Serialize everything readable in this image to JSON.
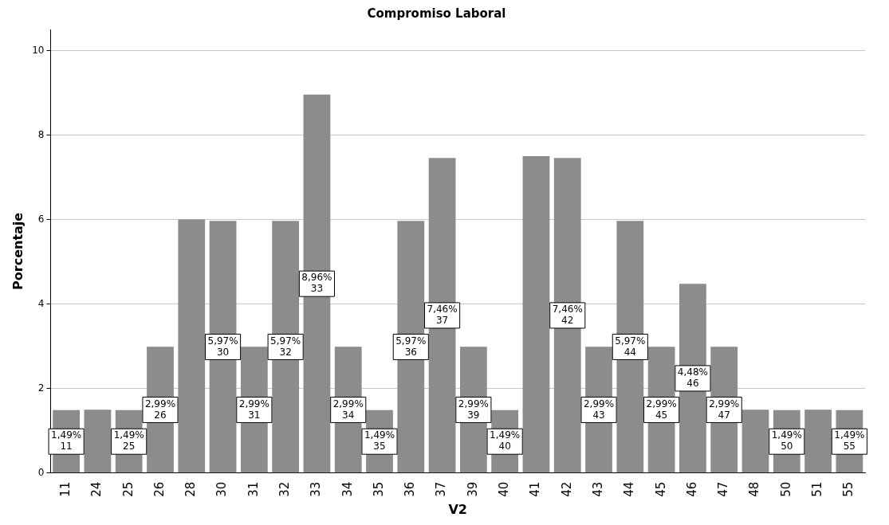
{
  "chart_data": {
    "type": "bar",
    "title": "Compromiso Laboral",
    "xlabel": "V2",
    "ylabel": "Porcentaje",
    "categories": [
      "11",
      "24",
      "25",
      "26",
      "28",
      "30",
      "31",
      "32",
      "33",
      "34",
      "35",
      "36",
      "37",
      "39",
      "40",
      "41",
      "42",
      "43",
      "44",
      "45",
      "46",
      "47",
      "48",
      "50",
      "51",
      "55"
    ],
    "values": [
      1.49,
      1.5,
      1.49,
      2.99,
      6,
      5.97,
      2.99,
      5.97,
      8.96,
      2.99,
      1.49,
      5.97,
      7.46,
      2.99,
      1.49,
      7.5,
      7.46,
      2.99,
      5.97,
      2.99,
      4.48,
      2.99,
      1.5,
      1.49,
      1.5,
      1.49
    ],
    "value_labels": [
      "1,49%\n11",
      null,
      "1,49%\n25",
      "2,99%\n26",
      null,
      "5,97%\n30",
      "2,99%\n31",
      "5,97%\n32",
      "8,96%\n33",
      "2,99%\n34",
      "1,49%\n35",
      "5,97%\n36",
      "7,46%\n37",
      "2,99%\n39",
      "1,49%\n40",
      null,
      "7,46%\n42",
      "2,99%\n43",
      "5,97%\n44",
      "2,99%\n45",
      "4,48%\n46",
      "2,99%\n47",
      null,
      "1,49%\n50",
      null,
      "1,49%\n55"
    ],
    "color": "#8c8c8c",
    "ylim": [
      0,
      10.5
    ],
    "yticks": [
      0,
      2,
      4,
      6,
      8,
      10
    ],
    "grid": "y",
    "legend": false
  }
}
